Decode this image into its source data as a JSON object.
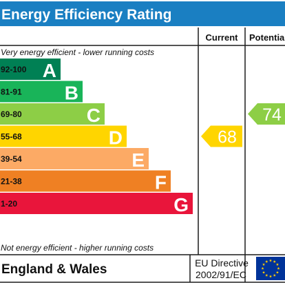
{
  "title": "Energy Efficiency Rating",
  "columns": {
    "current": "Current",
    "potential": "Potential"
  },
  "top_note": "Very energy efficient - lower running costs",
  "bottom_note": "Not energy efficient - higher running costs",
  "footer": {
    "region": "England & Wales",
    "directive_line1": "EU Directive",
    "directive_line2": "2002/91/EC"
  },
  "colors": {
    "title_bg": "#1a7fc2",
    "title_text": "#ffffff",
    "border": "#1a1a1a",
    "flag_bg": "#003399",
    "flag_star": "#ffcc00"
  },
  "chart_data": {
    "type": "bar",
    "categories": [
      "A",
      "B",
      "C",
      "D",
      "E",
      "F",
      "G"
    ],
    "ranges": [
      "92-100",
      "81-91",
      "69-80",
      "55-68",
      "39-54",
      "21-38",
      "1-20"
    ],
    "band_colors": [
      "#008054",
      "#19b459",
      "#8dce46",
      "#ffd500",
      "#fcaa65",
      "#ef8023",
      "#e9153b"
    ],
    "current": {
      "value": 68,
      "band": "D",
      "color": "#ffd500"
    },
    "potential": {
      "value": 74,
      "band": "C",
      "color": "#8dce46"
    }
  }
}
